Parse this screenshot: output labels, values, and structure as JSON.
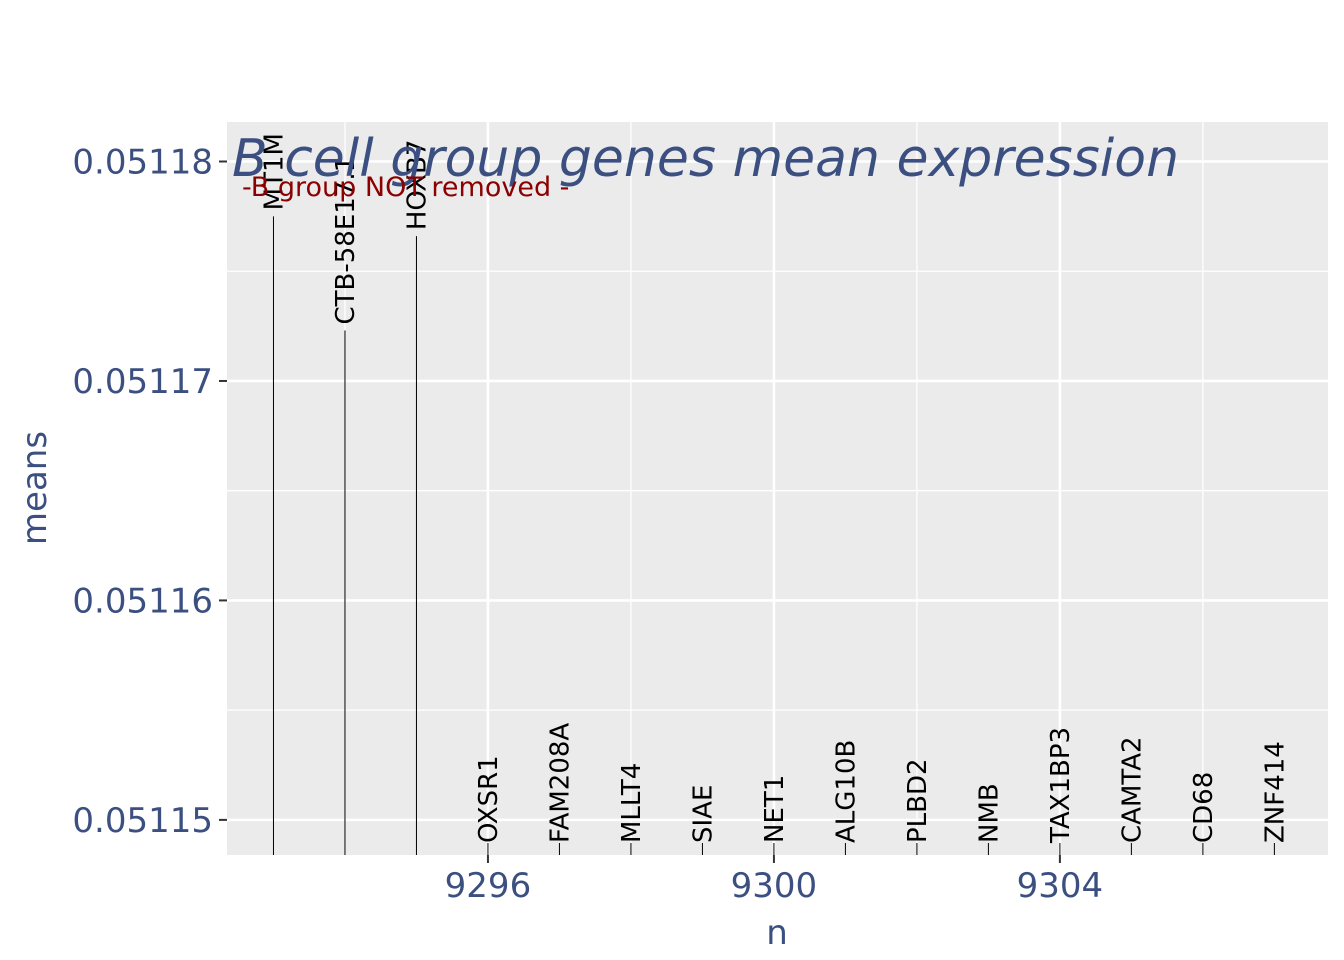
{
  "chart_data": {
    "type": "scatter",
    "title": "B cell group genes mean expression",
    "subtitle": "-B group NOT removed -",
    "xlabel": "n",
    "ylabel": "means",
    "xlim": [
      9292.35,
      9307.75
    ],
    "ylim": [
      0.0511484,
      0.0511818
    ],
    "x_ticks": [
      {
        "value": 9296,
        "label": "9296"
      },
      {
        "value": 9300,
        "label": "9300"
      },
      {
        "value": 9304,
        "label": "9304"
      }
    ],
    "y_ticks": [
      {
        "value": 0.05115,
        "label": "0.05115"
      },
      {
        "value": 0.05116,
        "label": "0.05116"
      },
      {
        "value": 0.05117,
        "label": "0.05117"
      },
      {
        "value": 0.05118,
        "label": "0.05118"
      }
    ],
    "grid": true,
    "points": [
      {
        "x": 9293,
        "y": 0.0511775,
        "label": "MT1M"
      },
      {
        "x": 9294,
        "y": 0.0511723,
        "label": "CTB-58E17.1"
      },
      {
        "x": 9295,
        "y": 0.0511766,
        "label": "HOXB7"
      },
      {
        "x": 9296,
        "y": 0.0511484,
        "label": "OXSR1"
      },
      {
        "x": 9297,
        "y": 0.0511484,
        "label": "FAM208A"
      },
      {
        "x": 9298,
        "y": 0.0511484,
        "label": "MLLT4"
      },
      {
        "x": 9299,
        "y": 0.0511484,
        "label": "SIAE"
      },
      {
        "x": 9300,
        "y": 0.0511484,
        "label": "NET1"
      },
      {
        "x": 9301,
        "y": 0.0511484,
        "label": "ALG10B"
      },
      {
        "x": 9302,
        "y": 0.0511484,
        "label": "PLBD2"
      },
      {
        "x": 9303,
        "y": 0.0511484,
        "label": "NMB"
      },
      {
        "x": 9304,
        "y": 0.0511484,
        "label": "TAX1BP3"
      },
      {
        "x": 9305,
        "y": 0.0511484,
        "label": "CAMTA2"
      },
      {
        "x": 9306,
        "y": 0.0511484,
        "label": "CD68"
      },
      {
        "x": 9307,
        "y": 0.0511484,
        "label": "ZNF414"
      }
    ],
    "colors": {
      "panel": "#ebebeb",
      "grid": "#ffffff",
      "segment": "#000000",
      "axis_text": "#3b4f80",
      "title": "#3b4f80",
      "subtitle": "#8b0000"
    }
  }
}
